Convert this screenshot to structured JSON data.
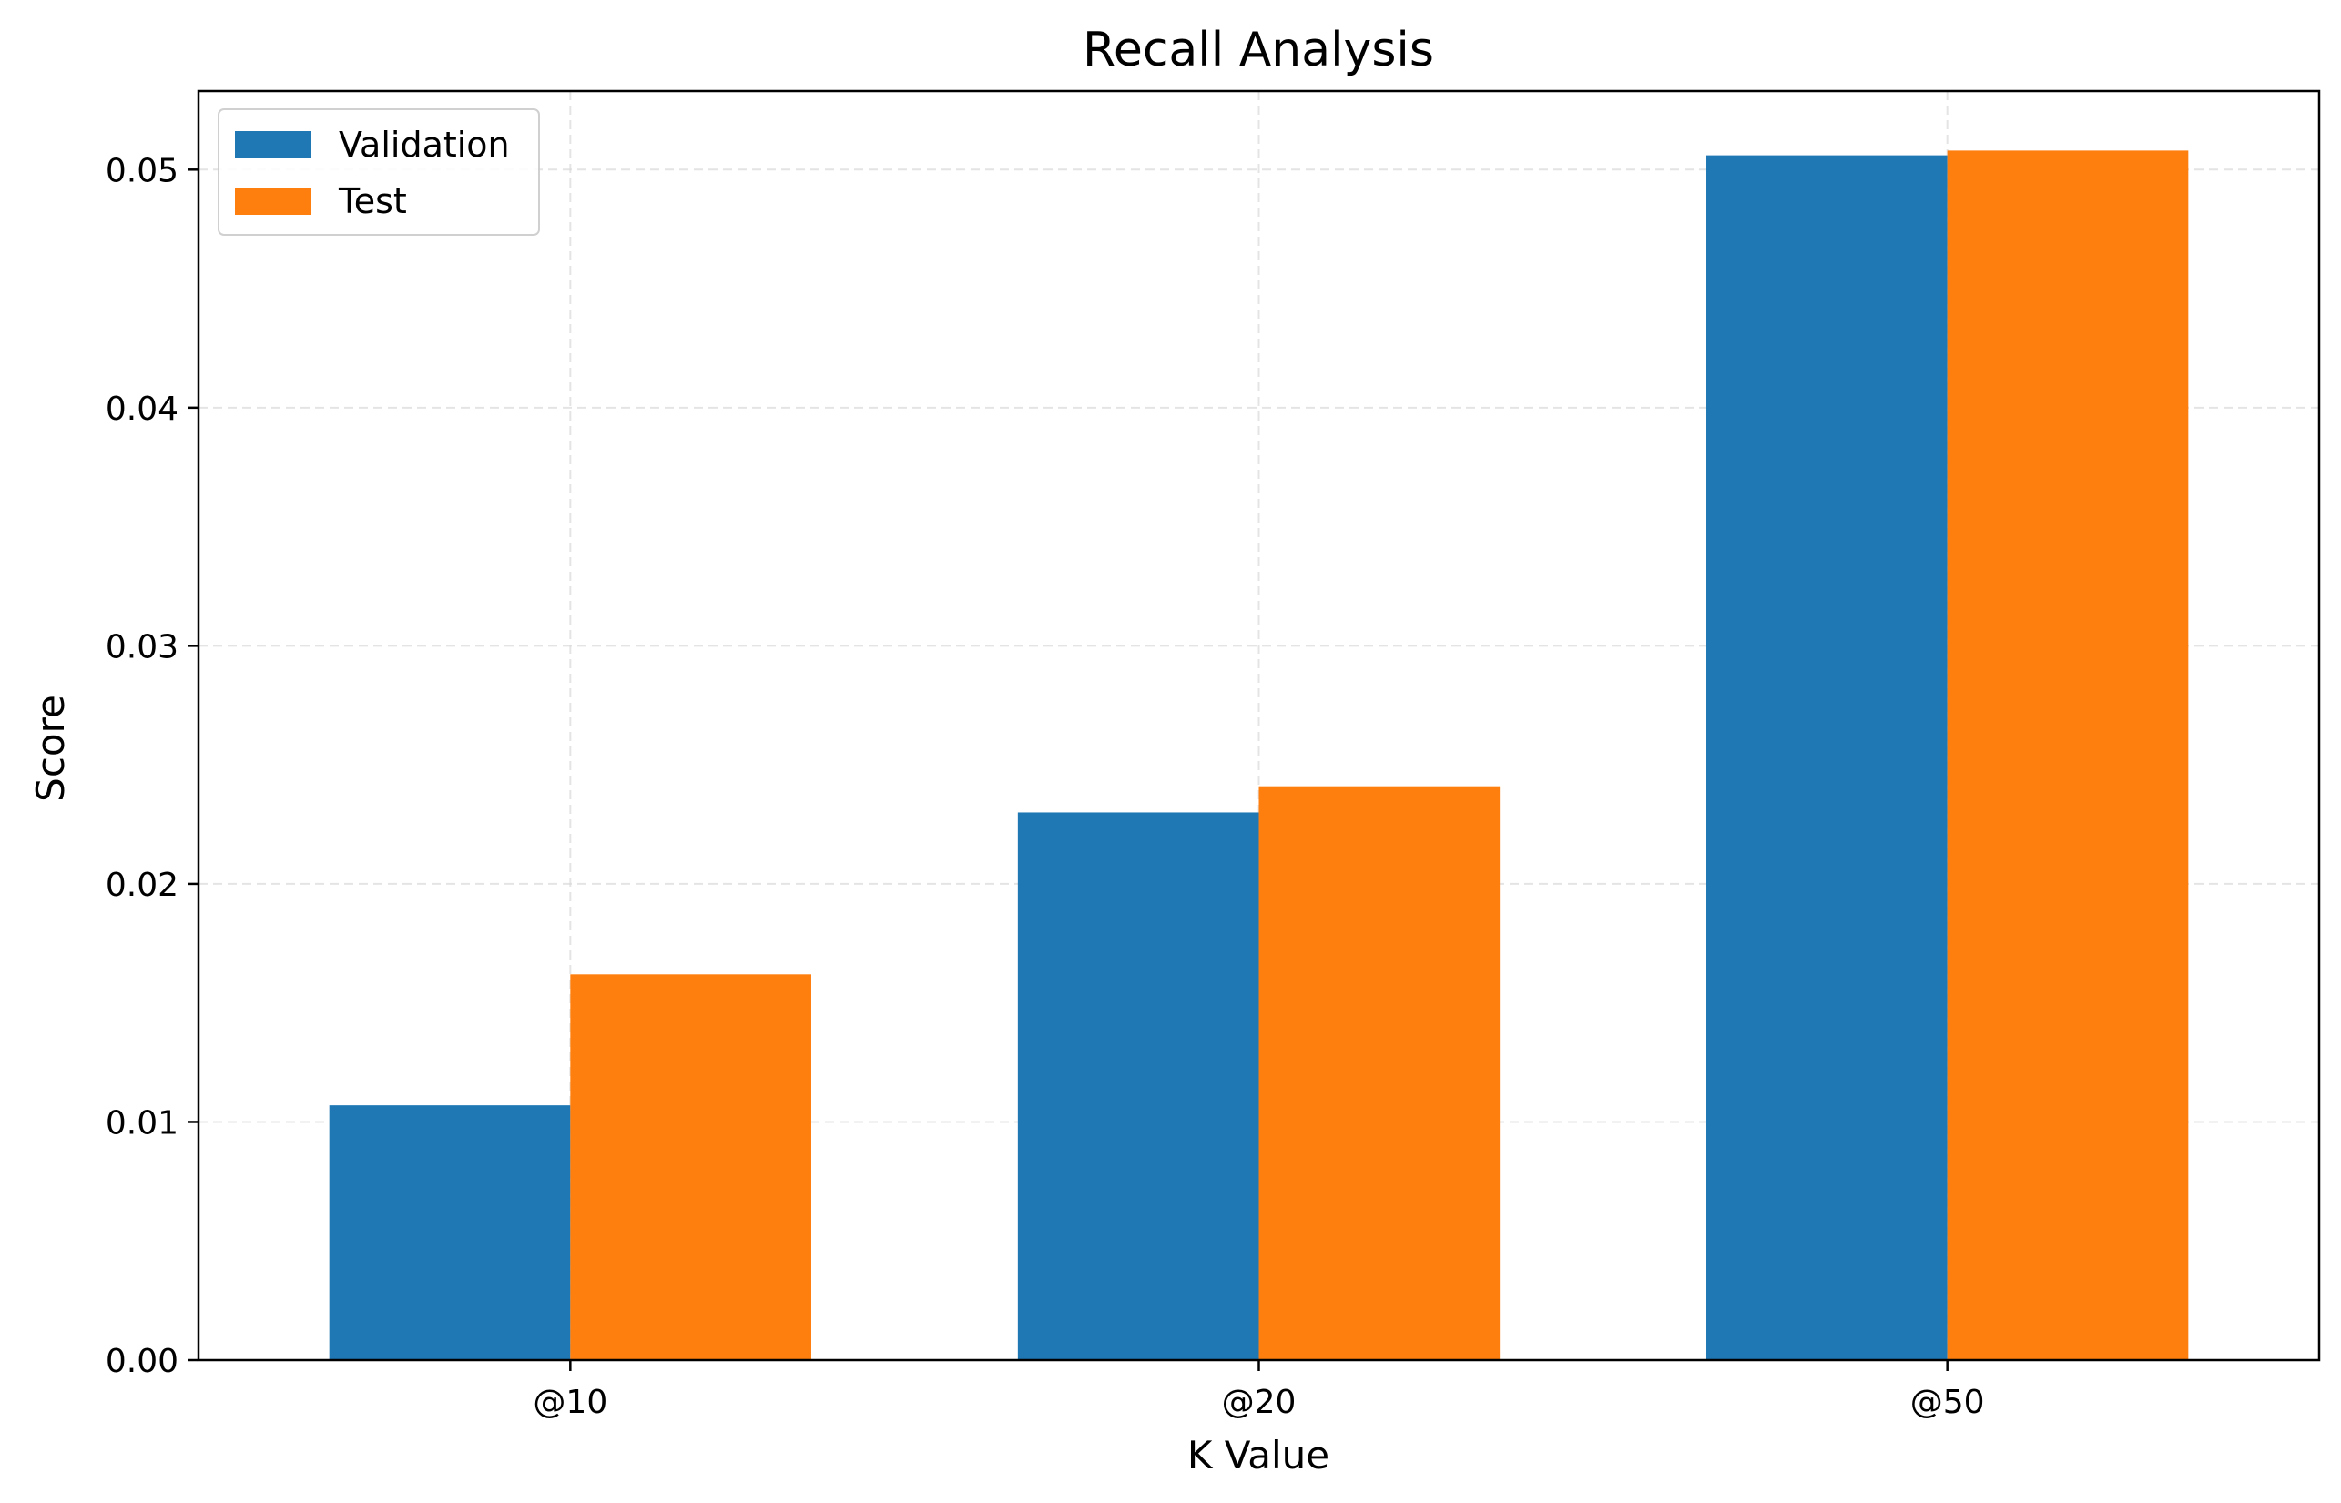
{
  "chart_data": {
    "type": "bar",
    "title": "Recall Analysis",
    "xlabel": "K Value",
    "ylabel": "Score",
    "categories": [
      "@10",
      "@20",
      "@50"
    ],
    "series": [
      {
        "name": "Validation",
        "color": "#1f77b4",
        "values": [
          0.0107,
          0.023,
          0.0506
        ]
      },
      {
        "name": "Test",
        "color": "#ff7f0e",
        "values": [
          0.0162,
          0.0241,
          0.0508
        ]
      }
    ],
    "ylim": [
      0,
      0.0533
    ],
    "yticks": [
      0.0,
      0.01,
      0.02,
      0.03,
      0.04,
      0.05
    ],
    "ytick_labels": [
      "0.00",
      "0.01",
      "0.02",
      "0.03",
      "0.04",
      "0.05"
    ],
    "grid": true,
    "legend_position": "top-left"
  }
}
